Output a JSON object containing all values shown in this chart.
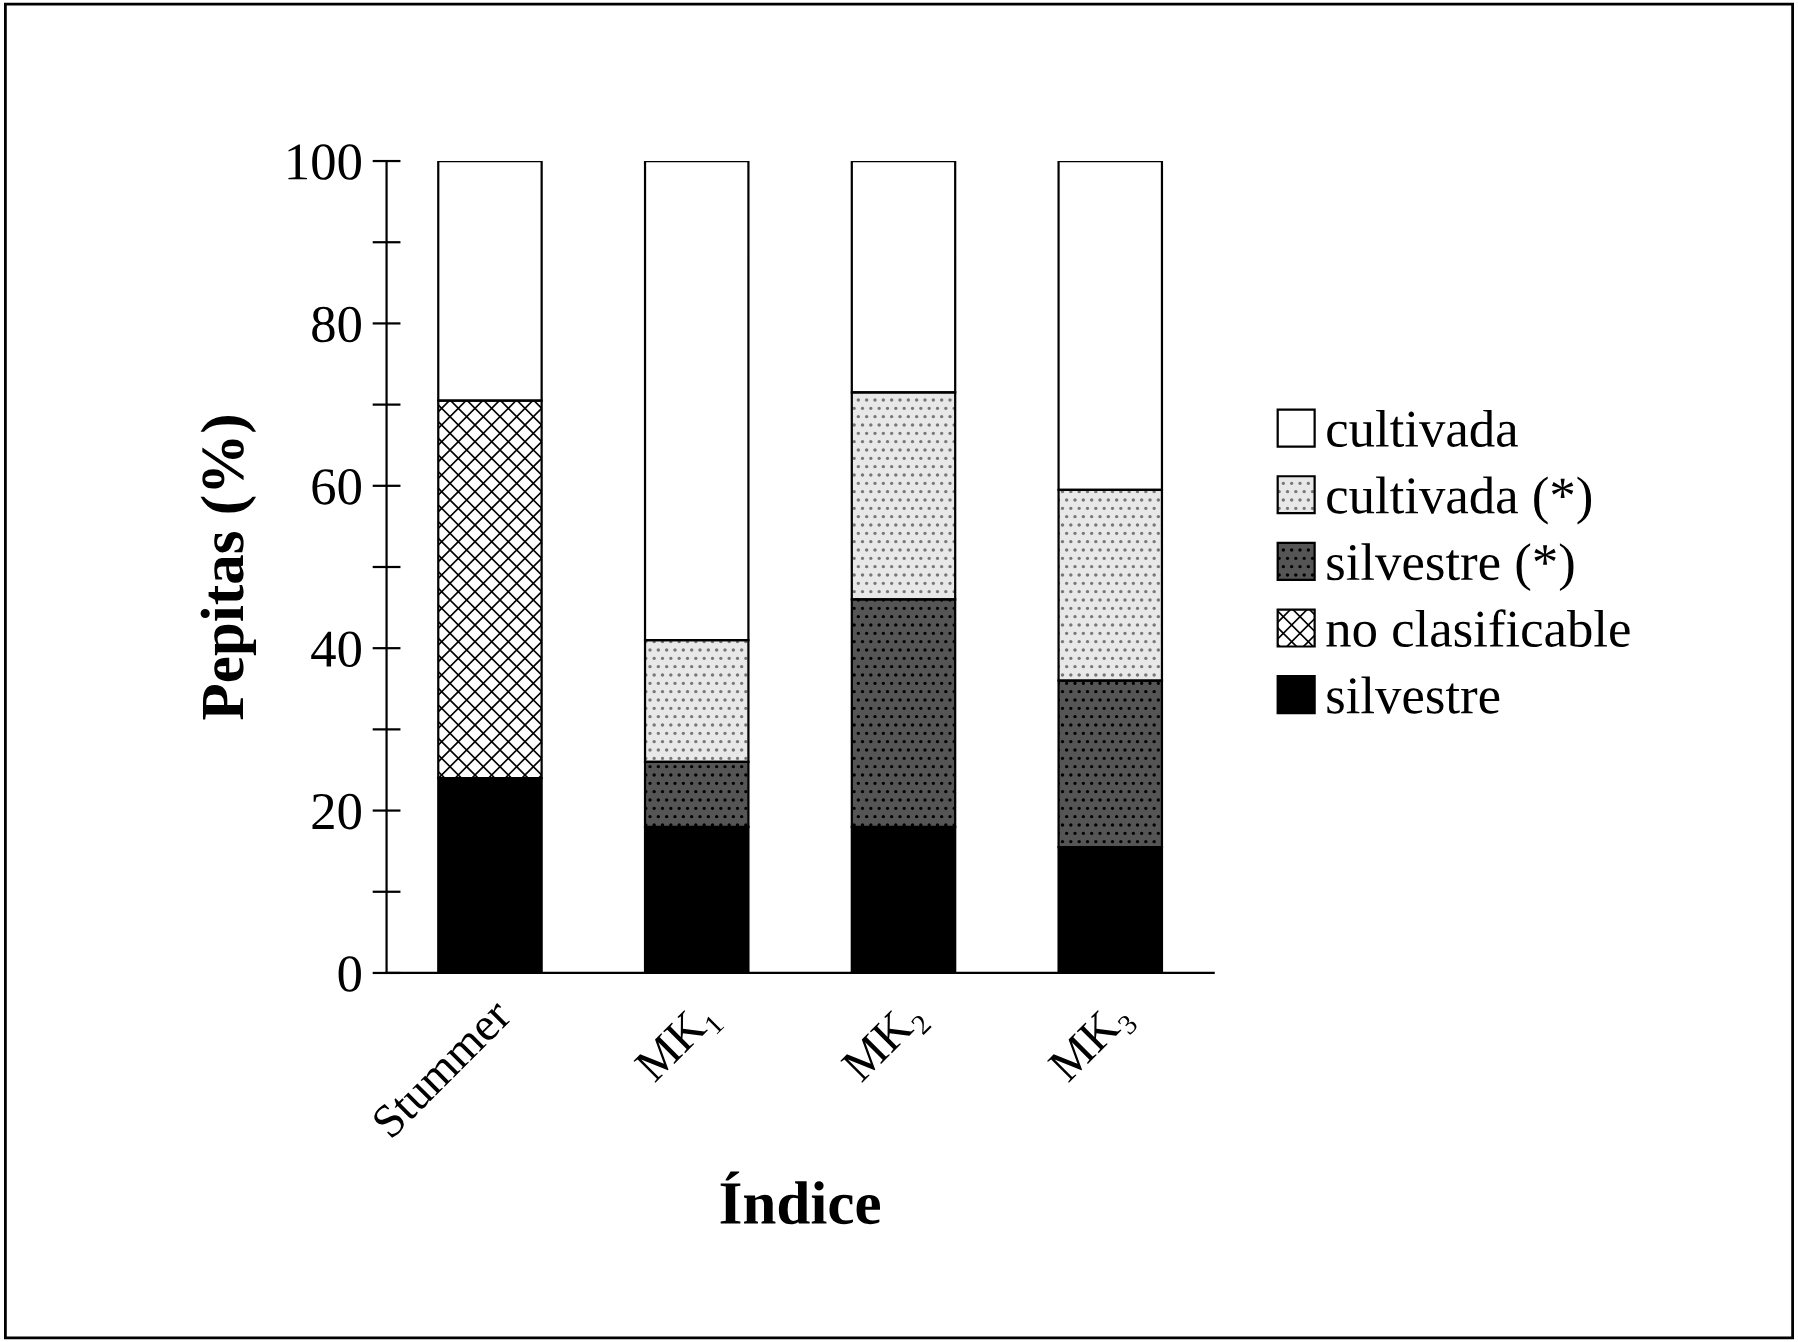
{
  "chart_data": {
    "type": "bar",
    "stacked": true,
    "xlabel": "Índice",
    "ylabel": "Pepitas (%)",
    "categories": [
      "Stummer",
      "MK₁",
      "MK₂",
      "MK₃"
    ],
    "series": [
      {
        "name": "silvestre",
        "color": "#000000",
        "values": [
          24,
          18,
          18,
          15.5
        ]
      },
      {
        "name": "no clasificable",
        "color": "#ffffff",
        "values": [
          46.5,
          null,
          null,
          null
        ]
      },
      {
        "name": "silvestre (*)",
        "color": "#555555",
        "values": [
          null,
          8,
          28,
          20.5
        ]
      },
      {
        "name": "cultivada (*)",
        "color": "#e8e8e8",
        "values": [
          null,
          15,
          25.5,
          23.5
        ]
      },
      {
        "name": "cultivada",
        "color": "#ffffff",
        "values": [
          29.5,
          59,
          28.5,
          40.5
        ]
      }
    ],
    "ylim": [
      0,
      100
    ],
    "yticks": [
      0,
      {
        "value": 10,
        "label": null
      },
      20,
      {
        "value": 30,
        "label": null
      },
      40,
      {
        "value": 50,
        "label": null
      },
      60,
      {
        "value": 70,
        "label": null
      },
      80,
      {
        "value": 90,
        "label": null
      },
      100
    ],
    "grid": false,
    "legend": "right"
  }
}
